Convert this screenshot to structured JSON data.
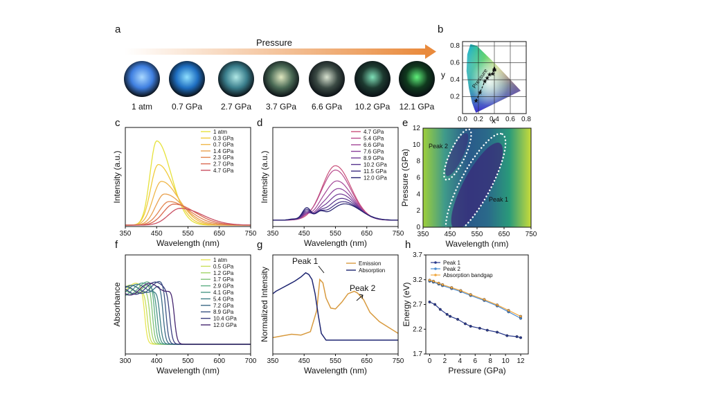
{
  "panel_letters": {
    "a": "a",
    "b": "b",
    "c": "c",
    "d": "d",
    "e": "e",
    "f": "f",
    "g": "g",
    "h": "h"
  },
  "colors": {
    "arrow": "#e98a3c",
    "axis": "#111111",
    "c_series": [
      "#e6e23a",
      "#f0cb3a",
      "#efb74a",
      "#e9a04e",
      "#e2844e",
      "#d9684f",
      "#c94f62"
    ],
    "d_series": [
      "#c94f7a",
      "#b84a8c",
      "#a24597",
      "#8a3f9a",
      "#6f3894",
      "#55318b",
      "#3b297f",
      "#231f6e"
    ],
    "f_series": [
      "#e8e655",
      "#c8df5a",
      "#a2d46a",
      "#7fc27a",
      "#5dae84",
      "#4a9686",
      "#3e7f86",
      "#3a6a86",
      "#3a5383",
      "#3a3d7e",
      "#44246e"
    ],
    "emission": "#d89a3e",
    "absorption": "#1d2470",
    "peak1": "#2a3a8c",
    "peak2": "#4a8bd1",
    "bandgap": "#f0a841"
  },
  "panel_a": {
    "arrow_label": "Pressure",
    "samples": [
      {
        "label": "1 atm",
        "color": "#3f7fe0",
        "glow": "#a9d8ff"
      },
      {
        "label": "0.7 GPa",
        "color": "#1f6fc2",
        "glow": "#8fe0ff"
      },
      {
        "label": "2.7 GPa",
        "color": "#3a7e8c",
        "glow": "#b0e8e6"
      },
      {
        "label": "3.7 GPa",
        "color": "#4a6a55",
        "glow": "#e0e8c0"
      },
      {
        "label": "6.6 GPa",
        "color": "#3b4a44",
        "glow": "#d8e2d0"
      },
      {
        "label": "10.2 GPa",
        "color": "#1d3a30",
        "glow": "#7fe0b8"
      },
      {
        "label": "12.1 GPa",
        "color": "#103a1e",
        "glow": "#5ff07a"
      }
    ]
  },
  "panel_b": {
    "xlabel": "x",
    "ylabel": "y",
    "xticks": [
      "0.0",
      "0.2",
      "0.4",
      "0.6",
      "0.8"
    ],
    "yticks": [
      "0.2",
      "0.4",
      "0.6",
      "0.8"
    ],
    "path_label": "Pressure"
  },
  "chart_data": [
    {
      "panel": "b",
      "type": "scatter",
      "xlabel": "x",
      "ylabel": "y",
      "xlim": [
        0,
        0.8
      ],
      "ylim": [
        0,
        0.85
      ],
      "grid": true,
      "x": [
        0.17,
        0.22,
        0.28,
        0.31,
        0.34,
        0.38,
        0.4
      ],
      "y": [
        0.15,
        0.25,
        0.38,
        0.42,
        0.46,
        0.47,
        0.52
      ]
    },
    {
      "panel": "c",
      "type": "line",
      "xlabel": "Wavelength (nm)",
      "ylabel": "Intensity (a.u.)",
      "xlim": [
        350,
        750
      ],
      "xticks": [
        "350",
        "450",
        "550",
        "650",
        "750"
      ],
      "legend_position": "top-right",
      "series": [
        {
          "name": "1 atm",
          "peak": 450,
          "amp": 1.0,
          "sl": 30,
          "sr": 65
        },
        {
          "name": "0.3 GPa",
          "peak": 455,
          "amp": 0.72,
          "sl": 34,
          "sr": 72
        },
        {
          "name": "0.7 GPa",
          "peak": 465,
          "amp": 0.52,
          "sl": 38,
          "sr": 78
        },
        {
          "name": "1.4 GPa",
          "peak": 475,
          "amp": 0.37,
          "sl": 40,
          "sr": 85
        },
        {
          "name": "2.3 GPa",
          "peak": 490,
          "amp": 0.28,
          "sl": 45,
          "sr": 92
        },
        {
          "name": "2.7 GPa",
          "peak": 505,
          "amp": 0.25,
          "sl": 48,
          "sr": 96
        },
        {
          "name": "4.7 GPa",
          "peak": 525,
          "amp": 0.2,
          "sl": 52,
          "sr": 100
        }
      ]
    },
    {
      "panel": "d",
      "type": "line",
      "xlabel": "Wavelength (nm)",
      "ylabel": "Intensity (a.u.)",
      "xlim": [
        350,
        750
      ],
      "xticks": [
        "350",
        "450",
        "550",
        "650",
        "750"
      ],
      "legend_position": "top-right",
      "series": [
        {
          "name": "4.7 GPa",
          "peak": 550,
          "amp": 1.0
        },
        {
          "name": "5.4 GPa",
          "peak": 550,
          "amp": 0.92
        },
        {
          "name": "6.6 GPa",
          "peak": 555,
          "amp": 0.72
        },
        {
          "name": "7.6 GPa",
          "peak": 560,
          "amp": 0.58
        },
        {
          "name": "8.9 GPa",
          "peak": 565,
          "amp": 0.48
        },
        {
          "name": "10.2 GPa",
          "peak": 570,
          "amp": 0.4
        },
        {
          "name": "11.5 GPa",
          "peak": 575,
          "amp": 0.34
        },
        {
          "name": "12.0 GPa",
          "peak": 580,
          "amp": 0.3
        }
      ]
    },
    {
      "panel": "e",
      "type": "heatmap",
      "xlabel": "Wavelength (nm)",
      "ylabel": "Pressure (GPa)",
      "xlim": [
        350,
        750
      ],
      "ylim": [
        0,
        12
      ],
      "xticks": [
        "350",
        "450",
        "550",
        "650",
        "750"
      ],
      "yticks": [
        "0",
        "2",
        "4",
        "6",
        "8",
        "10",
        "12"
      ],
      "annotations": [
        "Peak 2",
        "Peak 1"
      ]
    },
    {
      "panel": "f",
      "type": "line",
      "xlabel": "Wavelength (nm)",
      "ylabel": "Absorbance",
      "xlim": [
        300,
        700
      ],
      "xticks": [
        "300",
        "400",
        "500",
        "600",
        "700"
      ],
      "legend_position": "top-right",
      "series": [
        {
          "name": "1 atm",
          "edge": 362
        },
        {
          "name": "0.5 GPa",
          "edge": 370
        },
        {
          "name": "1.2 GPa",
          "edge": 378
        },
        {
          "name": "1.7 GPa",
          "edge": 386
        },
        {
          "name": "2.9 GPa",
          "edge": 394
        },
        {
          "name": "4.1 GPa",
          "edge": 402
        },
        {
          "name": "5.4 GPa",
          "edge": 410
        },
        {
          "name": "7.2 GPa",
          "edge": 420
        },
        {
          "name": "8.9 GPa",
          "edge": 430
        },
        {
          "name": "10.4 GPa",
          "edge": 442
        },
        {
          "name": "12.0 GPa",
          "edge": 456
        }
      ]
    },
    {
      "panel": "g",
      "type": "line",
      "xlabel": "Wavelength (nm)",
      "ylabel": "Normalized Intensity",
      "xlim": [
        350,
        750
      ],
      "xticks": [
        "350",
        "450",
        "550",
        "650",
        "750"
      ],
      "legend_position": "top-right",
      "annotations": [
        "Peak 1",
        "Peak 2"
      ],
      "series": [
        {
          "name": "Emission",
          "x": [
            350,
            380,
            410,
            440,
            470,
            490,
            500,
            510,
            520,
            535,
            550,
            570,
            590,
            610,
            620,
            640,
            660,
            690,
            720,
            750
          ],
          "y": [
            0.03,
            0.05,
            0.07,
            0.06,
            0.1,
            0.35,
            0.72,
            0.68,
            0.5,
            0.38,
            0.37,
            0.45,
            0.55,
            0.58,
            0.56,
            0.48,
            0.33,
            0.22,
            0.15,
            0.08
          ]
        },
        {
          "name": "Absorption",
          "x": [
            350,
            360,
            380,
            400,
            420,
            440,
            455,
            465,
            475,
            485,
            495,
            505,
            520,
            540,
            560,
            600,
            650,
            700,
            750
          ],
          "y": [
            0.55,
            0.58,
            0.62,
            0.66,
            0.7,
            0.75,
            0.8,
            0.78,
            0.72,
            0.55,
            0.3,
            0.08,
            0.0,
            0.0,
            0.0,
            0.0,
            0.0,
            0.0,
            0.0
          ]
        }
      ]
    },
    {
      "panel": "h",
      "type": "line",
      "xlabel": "Pressure (GPa)",
      "ylabel": "Energy (eV)",
      "xlim": [
        -0.5,
        13
      ],
      "ylim": [
        1.7,
        3.7
      ],
      "xticks": [
        "0",
        "2",
        "4",
        "6",
        "8",
        "10",
        "12"
      ],
      "yticks": [
        "1.7",
        "2.2",
        "2.7",
        "3.2",
        "3.7"
      ],
      "legend_position": "top-left",
      "series": [
        {
          "name": "Peak 1",
          "x": [
            0,
            0.7,
            1.4,
            2.3,
            2.7,
            3.7,
            4.7,
            5.4,
            6.6,
            7.6,
            8.9,
            10.2,
            11.5,
            12.0
          ],
          "y": [
            2.75,
            2.7,
            2.6,
            2.5,
            2.46,
            2.4,
            2.31,
            2.26,
            2.22,
            2.18,
            2.14,
            2.07,
            2.05,
            2.03
          ]
        },
        {
          "name": "Peak 2",
          "x": [
            0,
            0.5,
            1.2,
            1.7,
            2.9,
            4.1,
            5.4,
            7.2,
            8.9,
            10.4,
            12.0
          ],
          "y": [
            3.17,
            3.15,
            3.11,
            3.08,
            3.02,
            2.96,
            2.88,
            2.78,
            2.67,
            2.55,
            2.42
          ]
        },
        {
          "name": "Absorption bandgap",
          "x": [
            0,
            0.5,
            1.2,
            1.7,
            2.9,
            4.1,
            5.4,
            7.2,
            8.9,
            10.4,
            12.0
          ],
          "y": [
            3.19,
            3.17,
            3.13,
            3.1,
            3.04,
            2.98,
            2.9,
            2.8,
            2.69,
            2.58,
            2.46
          ]
        }
      ]
    }
  ]
}
